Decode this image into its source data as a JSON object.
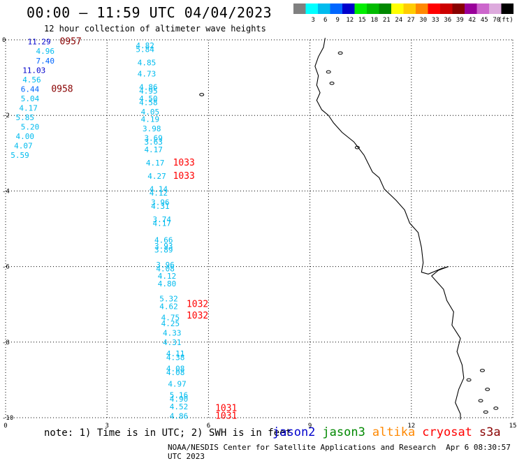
{
  "header": {
    "title": "00:00 – 11:59 UTC 04/04/2023",
    "subtitle": "12 hour collection of altimeter wave heights"
  },
  "legend": {
    "unit": "(ft)",
    "items": [
      {
        "label": "",
        "color": "#808080"
      },
      {
        "label": "3",
        "color": "#00ffff"
      },
      {
        "label": "6",
        "color": "#00bbee"
      },
      {
        "label": "9",
        "color": "#0066ff"
      },
      {
        "label": "12",
        "color": "#0000cc"
      },
      {
        "label": "15",
        "color": "#00ee00"
      },
      {
        "label": "18",
        "color": "#00bb00"
      },
      {
        "label": "21",
        "color": "#008800"
      },
      {
        "label": "24",
        "color": "#ffff00"
      },
      {
        "label": "27",
        "color": "#ffcc00"
      },
      {
        "label": "30",
        "color": "#ff8800"
      },
      {
        "label": "33",
        "color": "#ff0000"
      },
      {
        "label": "36",
        "color": "#cc0000"
      },
      {
        "label": "39",
        "color": "#880000"
      },
      {
        "label": "42",
        "color": "#990099"
      },
      {
        "label": "45",
        "color": "#cc66cc"
      },
      {
        "label": "70",
        "color": "#ddaadd"
      },
      {
        "label": "",
        "color": "#000000"
      }
    ]
  },
  "axes": {
    "x_ticks": [
      "0",
      "3",
      "6",
      "9",
      "12",
      "15"
    ],
    "y_ticks": [
      "0",
      "-2",
      "-4",
      "-6",
      "-8",
      "-10"
    ],
    "xlim": [
      0,
      15
    ],
    "ylim": [
      -10,
      0
    ],
    "grid": "dotted"
  },
  "swh_labels": [
    {
      "v": "11.29",
      "lon": 0.65,
      "lat": -0.05,
      "c": "#0000cc"
    },
    {
      "v": "4.96",
      "lon": 0.9,
      "lat": -0.3,
      "c": "#00bbee"
    },
    {
      "v": "7.40",
      "lon": 0.9,
      "lat": -0.55,
      "c": "#0066ff"
    },
    {
      "v": "11.03",
      "lon": 0.5,
      "lat": -0.8,
      "c": "#0000cc"
    },
    {
      "v": "4.56",
      "lon": 0.5,
      "lat": -1.05,
      "c": "#00bbee"
    },
    {
      "v": "6.44",
      "lon": 0.45,
      "lat": -1.3,
      "c": "#0066ff"
    },
    {
      "v": "5.04",
      "lon": 0.45,
      "lat": -1.55,
      "c": "#00bbee"
    },
    {
      "v": "4.17",
      "lon": 0.4,
      "lat": -1.8,
      "c": "#00bbee"
    },
    {
      "v": "5.85",
      "lon": 0.3,
      "lat": -2.05,
      "c": "#00bbee"
    },
    {
      "v": "5.20",
      "lon": 0.45,
      "lat": -2.3,
      "c": "#00bbee"
    },
    {
      "v": "4.00",
      "lon": 0.3,
      "lat": -2.55,
      "c": "#00bbee"
    },
    {
      "v": "4.07",
      "lon": 0.25,
      "lat": -2.8,
      "c": "#00bbee"
    },
    {
      "v": "5.59",
      "lon": 0.15,
      "lat": -3.05,
      "c": "#00bbee"
    },
    {
      "v": "4.82",
      "lon": 3.85,
      "lat": -0.15,
      "c": "#00bbee"
    },
    {
      "v": "5.84",
      "lon": 3.85,
      "lat": -0.25,
      "c": "#00bbee"
    },
    {
      "v": "4.85",
      "lon": 3.9,
      "lat": -0.6,
      "c": "#00bbee"
    },
    {
      "v": "4.73",
      "lon": 3.9,
      "lat": -0.9,
      "c": "#00bbee"
    },
    {
      "v": "4.86",
      "lon": 3.95,
      "lat": -1.25,
      "c": "#00bbee"
    },
    {
      "v": "4.95",
      "lon": 3.95,
      "lat": -1.35,
      "c": "#00bbee"
    },
    {
      "v": "4.50",
      "lon": 3.95,
      "lat": -1.55,
      "c": "#00bbee"
    },
    {
      "v": "4.58",
      "lon": 3.95,
      "lat": -1.65,
      "c": "#00bbee"
    },
    {
      "v": "4.05",
      "lon": 4.0,
      "lat": -1.9,
      "c": "#00bbee"
    },
    {
      "v": "4.19",
      "lon": 4.0,
      "lat": -2.1,
      "c": "#00bbee"
    },
    {
      "v": "3.98",
      "lon": 4.05,
      "lat": -2.35,
      "c": "#00bbee"
    },
    {
      "v": "3.69",
      "lon": 4.1,
      "lat": -2.6,
      "c": "#00bbee"
    },
    {
      "v": "3.63",
      "lon": 4.1,
      "lat": -2.7,
      "c": "#00bbee"
    },
    {
      "v": "4.17",
      "lon": 4.1,
      "lat": -2.9,
      "c": "#00bbee"
    },
    {
      "v": "4.17",
      "lon": 4.15,
      "lat": -3.25,
      "c": "#00bbee"
    },
    {
      "v": "4.27",
      "lon": 4.2,
      "lat": -3.6,
      "c": "#00bbee"
    },
    {
      "v": "4.14",
      "lon": 4.25,
      "lat": -3.95,
      "c": "#00bbee"
    },
    {
      "v": "4.12",
      "lon": 4.25,
      "lat": -4.05,
      "c": "#00bbee"
    },
    {
      "v": "3.96",
      "lon": 4.3,
      "lat": -4.3,
      "c": "#00bbee"
    },
    {
      "v": "4.31",
      "lon": 4.3,
      "lat": -4.4,
      "c": "#00bbee"
    },
    {
      "v": "3.74",
      "lon": 4.35,
      "lat": -4.75,
      "c": "#00bbee"
    },
    {
      "v": "4.17",
      "lon": 4.35,
      "lat": -4.85,
      "c": "#00bbee"
    },
    {
      "v": "4.66",
      "lon": 4.4,
      "lat": -5.3,
      "c": "#00bbee"
    },
    {
      "v": "3.93",
      "lon": 4.4,
      "lat": -5.45,
      "c": "#00bbee"
    },
    {
      "v": "3.89",
      "lon": 4.4,
      "lat": -5.55,
      "c": "#00bbee"
    },
    {
      "v": "3.96",
      "lon": 4.45,
      "lat": -5.95,
      "c": "#00bbee"
    },
    {
      "v": "4.08",
      "lon": 4.45,
      "lat": -6.05,
      "c": "#00bbee"
    },
    {
      "v": "4.12",
      "lon": 4.5,
      "lat": -6.25,
      "c": "#00bbee"
    },
    {
      "v": "4.80",
      "lon": 4.5,
      "lat": -6.45,
      "c": "#00bbee"
    },
    {
      "v": "5.32",
      "lon": 4.55,
      "lat": -6.85,
      "c": "#00bbee"
    },
    {
      "v": "4.62",
      "lon": 4.55,
      "lat": -7.05,
      "c": "#00bbee"
    },
    {
      "v": "4.75",
      "lon": 4.6,
      "lat": -7.35,
      "c": "#00bbee"
    },
    {
      "v": "4.25",
      "lon": 4.6,
      "lat": -7.5,
      "c": "#00bbee"
    },
    {
      "v": "4.33",
      "lon": 4.65,
      "lat": -7.75,
      "c": "#00bbee"
    },
    {
      "v": "4.31",
      "lon": 4.65,
      "lat": -8.0,
      "c": "#00bbee"
    },
    {
      "v": "4.11",
      "lon": 4.75,
      "lat": -8.3,
      "c": "#00bbee"
    },
    {
      "v": "4.38",
      "lon": 4.75,
      "lat": -8.4,
      "c": "#00bbee"
    },
    {
      "v": "4.08",
      "lon": 4.75,
      "lat": -8.7,
      "c": "#00bbee"
    },
    {
      "v": "4.08",
      "lon": 4.75,
      "lat": -8.8,
      "c": "#00bbee"
    },
    {
      "v": "4.97",
      "lon": 4.8,
      "lat": -9.1,
      "c": "#00bbee"
    },
    {
      "v": "5.16",
      "lon": 4.85,
      "lat": -9.4,
      "c": "#00bbee"
    },
    {
      "v": "4.90",
      "lon": 4.85,
      "lat": -9.5,
      "c": "#00bbee"
    },
    {
      "v": "4.52",
      "lon": 4.85,
      "lat": -9.7,
      "c": "#00bbee"
    },
    {
      "v": "4.86",
      "lon": 4.85,
      "lat": -9.95,
      "c": "#00bbee"
    }
  ],
  "time_labels": [
    {
      "v": "0957",
      "lon": 1.6,
      "lat": -0.05,
      "c": "#880000"
    },
    {
      "v": "0958",
      "lon": 1.35,
      "lat": -1.3,
      "c": "#880000"
    },
    {
      "v": "1033",
      "lon": 4.95,
      "lat": -3.25,
      "c": "#ff0000"
    },
    {
      "v": "1033",
      "lon": 4.95,
      "lat": -3.6,
      "c": "#ff0000"
    },
    {
      "v": "1032",
      "lon": 5.35,
      "lat": -7.0,
      "c": "#ff0000"
    },
    {
      "v": "1032",
      "lon": 5.35,
      "lat": -7.3,
      "c": "#ff0000"
    },
    {
      "v": "1031",
      "lon": 6.2,
      "lat": -9.75,
      "c": "#ff0000"
    },
    {
      "v": "1031",
      "lon": 6.2,
      "lat": -9.95,
      "c": "#ff0000"
    }
  ],
  "coastline": {
    "mainland": [
      [
        9.45,
        0.05
      ],
      [
        9.4,
        -0.2
      ],
      [
        9.25,
        -0.45
      ],
      [
        9.15,
        -0.7
      ],
      [
        9.25,
        -0.95
      ],
      [
        9.2,
        -1.2
      ],
      [
        9.3,
        -1.4
      ],
      [
        9.2,
        -1.6
      ],
      [
        9.35,
        -1.85
      ],
      [
        9.55,
        -2.0
      ],
      [
        9.7,
        -2.2
      ],
      [
        9.95,
        -2.45
      ],
      [
        10.3,
        -2.7
      ],
      [
        10.6,
        -3.05
      ],
      [
        10.85,
        -3.5
      ],
      [
        11.05,
        -3.65
      ],
      [
        11.2,
        -3.95
      ],
      [
        11.55,
        -4.25
      ],
      [
        11.8,
        -4.5
      ],
      [
        11.95,
        -4.85
      ],
      [
        12.2,
        -5.1
      ],
      [
        12.3,
        -5.5
      ],
      [
        12.35,
        -5.9
      ],
      [
        12.3,
        -6.15
      ],
      [
        12.5,
        -6.2
      ],
      [
        12.9,
        -6.05
      ],
      [
        13.1,
        -6.0
      ],
      [
        12.8,
        -6.1
      ],
      [
        12.6,
        -6.25
      ],
      [
        12.95,
        -6.6
      ],
      [
        13.05,
        -6.9
      ],
      [
        13.25,
        -7.2
      ],
      [
        13.2,
        -7.55
      ],
      [
        13.45,
        -7.9
      ],
      [
        13.35,
        -8.25
      ],
      [
        13.5,
        -8.6
      ],
      [
        13.55,
        -8.95
      ],
      [
        13.4,
        -9.25
      ],
      [
        13.3,
        -9.6
      ],
      [
        13.45,
        -9.9
      ],
      [
        13.45,
        -10.05
      ]
    ],
    "islands": [
      [
        14.25,
        -9.25
      ],
      [
        14.05,
        -9.55
      ],
      [
        14.5,
        -9.75
      ],
      [
        14.2,
        -9.85
      ],
      [
        5.8,
        -1.45
      ],
      [
        10.4,
        -2.85
      ],
      [
        9.9,
        -0.35
      ],
      [
        9.55,
        -0.85
      ],
      [
        9.65,
        -1.15
      ],
      [
        14.1,
        -8.75
      ],
      [
        13.7,
        -9.0
      ]
    ]
  },
  "footer": {
    "note": "note: 1) Time is in UTC; 2) SWH is in feet",
    "satellites": [
      {
        "name": "jason2",
        "color": "#0000cc"
      },
      {
        "name": "jason3",
        "color": "#008800"
      },
      {
        "name": "altika",
        "color": "#ff8800"
      },
      {
        "name": "cryosat",
        "color": "#ff0000"
      },
      {
        "name": "s3a",
        "color": "#880000"
      }
    ],
    "credit": "NOAA/NESDIS Center for Satellite Applications and Research",
    "timestamp": "Apr  6 08:30:57 UTC 2023"
  }
}
